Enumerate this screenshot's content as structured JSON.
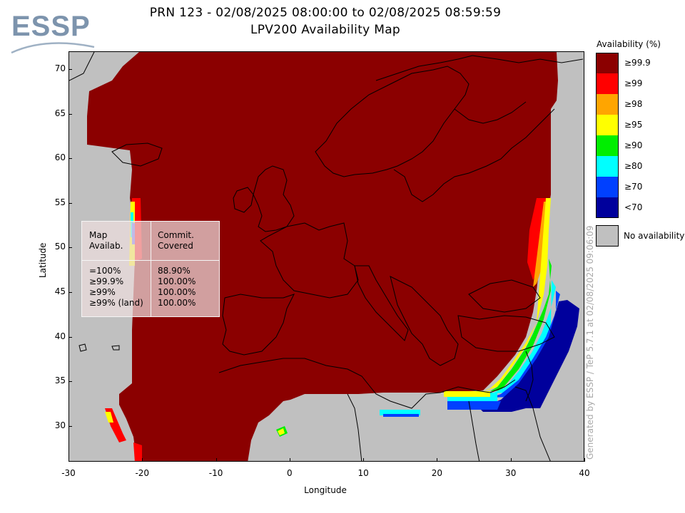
{
  "logo": {
    "text": "ESSP"
  },
  "title": {
    "line1": "PRN 123 - 02/08/2025 08:00:00 to 02/08/2025 08:59:59",
    "line2": "LPV200 Availability Map"
  },
  "axes": {
    "xlabel": "Longitude",
    "ylabel": "Latitude",
    "xticks": [
      "-30",
      "-20",
      "-10",
      "0",
      "10",
      "20",
      "30",
      "40"
    ],
    "yticks": [
      "70",
      "65",
      "60",
      "55",
      "50",
      "45",
      "40",
      "35",
      "30"
    ],
    "xlim": [
      -30,
      40
    ],
    "ylim": [
      26,
      72
    ]
  },
  "legend": {
    "title": "Availability (%)",
    "items": [
      {
        "label": "≥99.9",
        "color": "#8b0000"
      },
      {
        "label": "≥99",
        "color": "#ff0000"
      },
      {
        "label": "≥98",
        "color": "#ffa500"
      },
      {
        "label": "≥95",
        "color": "#ffff00"
      },
      {
        "label": "≥90",
        "color": "#00ee00"
      },
      {
        "label": "≥80",
        "color": "#00ffff"
      },
      {
        "label": "≥70",
        "color": "#0040ff"
      },
      {
        "label": "<70",
        "color": "#00009c"
      }
    ],
    "no_availability": {
      "label": "No availability",
      "color": "#c0c0c0"
    }
  },
  "stats_table": {
    "header_left": "Map\nAvailab.",
    "header_right": "Commit.\nCovered",
    "rows_left": "=100%\n≥99.9%\n≥99%\n≥99% (land)",
    "rows_right": "88.90%\n100.00%\n100.00%\n100.00%"
  },
  "footer": {
    "generated": "Generated by ESSP / TeP 5.7.1 at 02/08/2025 09:06:09"
  },
  "colors": {
    "no_coverage": "#c0c0c0",
    "full_coverage": "#8b0000"
  }
}
